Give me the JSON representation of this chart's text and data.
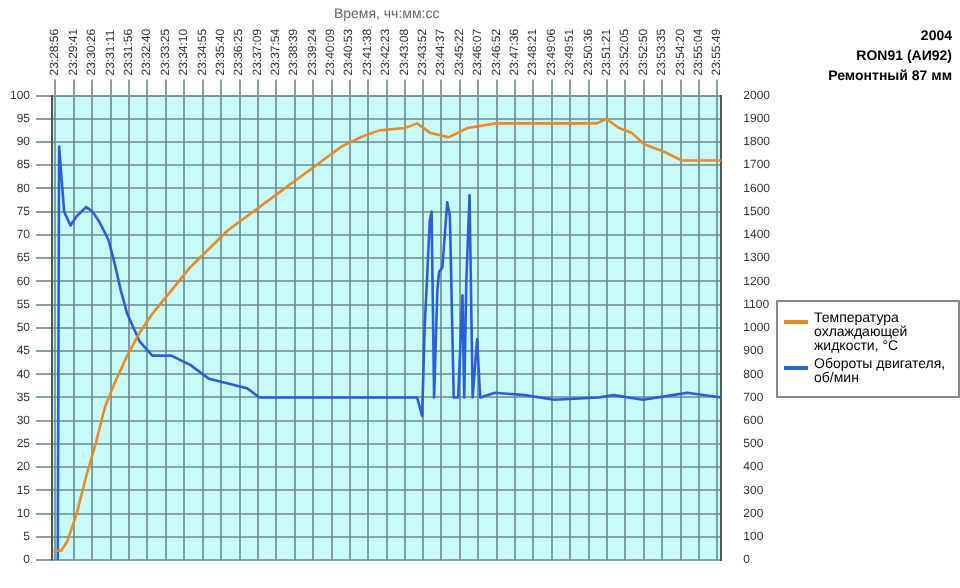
{
  "chart_data": {
    "type": "line",
    "xlabel": "Время, чч:мм:сс",
    "annotations": [
      "2004",
      "RON91 (АИ92)",
      "Ремонтный 87 мм"
    ],
    "xlim": [
      23.48,
      23.933
    ],
    "xticks": [
      {
        "value": 23.48222,
        "label": "23:28:56"
      },
      {
        "value": 23.49472,
        "label": "23:29:41"
      },
      {
        "value": 23.50722,
        "label": "23:30:26"
      },
      {
        "value": 23.51972,
        "label": "23:31:11"
      },
      {
        "value": 23.53222,
        "label": "23:31:56"
      },
      {
        "value": 23.54444,
        "label": "23:32:40"
      },
      {
        "value": 23.55694,
        "label": "23:33:25"
      },
      {
        "value": 23.56944,
        "label": "23:34:10"
      },
      {
        "value": 23.58194,
        "label": "23:34:55"
      },
      {
        "value": 23.59444,
        "label": "23:35:40"
      },
      {
        "value": 23.60694,
        "label": "23:36:25"
      },
      {
        "value": 23.61917,
        "label": "23:37:09"
      },
      {
        "value": 23.63167,
        "label": "23:37:54"
      },
      {
        "value": 23.64417,
        "label": "23:38:39"
      },
      {
        "value": 23.65667,
        "label": "23:39:24"
      },
      {
        "value": 23.66917,
        "label": "23:40:09"
      },
      {
        "value": 23.68139,
        "label": "23:40:53"
      },
      {
        "value": 23.69389,
        "label": "23:41:38"
      },
      {
        "value": 23.70639,
        "label": "23:42:23"
      },
      {
        "value": 23.71889,
        "label": "23:43:08"
      },
      {
        "value": 23.73111,
        "label": "23:43:52"
      },
      {
        "value": 23.74361,
        "label": "23:44:37"
      },
      {
        "value": 23.75611,
        "label": "23:45:22"
      },
      {
        "value": 23.76861,
        "label": "23:46:07"
      },
      {
        "value": 23.78111,
        "label": "23:46:52"
      },
      {
        "value": 23.79333,
        "label": "23:47:36"
      },
      {
        "value": 23.80583,
        "label": "23:48:21"
      },
      {
        "value": 23.81833,
        "label": "23:49:06"
      },
      {
        "value": 23.83083,
        "label": "23:49:51"
      },
      {
        "value": 23.84333,
        "label": "23:50:36"
      },
      {
        "value": 23.85583,
        "label": "23:51:21"
      },
      {
        "value": 23.86806,
        "label": "23:52:05"
      },
      {
        "value": 23.88056,
        "label": "23:52:50"
      },
      {
        "value": 23.89306,
        "label": "23:53:35"
      },
      {
        "value": 23.90556,
        "label": "23:54:20"
      },
      {
        "value": 23.91778,
        "label": "23:55:04"
      },
      {
        "value": 23.93028,
        "label": "23:55:49"
      }
    ],
    "ylim": [
      0,
      100
    ],
    "yticks": [
      0,
      5,
      10,
      15,
      20,
      25,
      30,
      35,
      40,
      45,
      50,
      55,
      60,
      65,
      70,
      75,
      80,
      85,
      90,
      95,
      100
    ],
    "y2lim": [
      0,
      2000
    ],
    "y2ticks": [
      0,
      100,
      200,
      300,
      400,
      500,
      600,
      700,
      800,
      900,
      1000,
      1100,
      1200,
      1300,
      1400,
      1500,
      1600,
      1700,
      1800,
      1900,
      2000
    ],
    "grid": true,
    "legend": "right",
    "marker": "none",
    "line_style": "solid",
    "series": [
      {
        "name": "Температура охлаждающей жидкости, °C",
        "color": "#e8892a",
        "x": [
          23.481,
          23.4861,
          23.4903,
          23.4967,
          23.5031,
          23.5095,
          23.5159,
          23.5223,
          23.5309,
          23.5394,
          23.5479,
          23.5607,
          23.5735,
          23.5863,
          23.5991,
          23.6119,
          23.6247,
          23.6375,
          23.6503,
          23.6631,
          23.6759,
          23.6887,
          23.7015,
          23.7187,
          23.7271,
          23.7357,
          23.7484,
          23.7549,
          23.7613,
          23.7805,
          23.8487,
          23.8551,
          23.8637,
          23.8722,
          23.8807,
          23.8935,
          23.9063,
          23.933
        ],
        "values": [
          2,
          2,
          4,
          10,
          18,
          25,
          33,
          38,
          44,
          49,
          53,
          58,
          63,
          67,
          71,
          74,
          77,
          80,
          83,
          86,
          89,
          91,
          92.5,
          93,
          94,
          92,
          91,
          92,
          93,
          94,
          94,
          95,
          93,
          92,
          89.5,
          88,
          86,
          86
        ]
      },
      {
        "name": "Обороты двигателя, об/мин",
        "color": "#2a5fd8",
        "axis": "y2",
        "x": [
          23.4839,
          23.4848,
          23.4882,
          23.4925,
          23.4967,
          23.5031,
          23.5074,
          23.5117,
          23.5181,
          23.5223,
          23.5266,
          23.5309,
          23.5394,
          23.5479,
          23.5607,
          23.5735,
          23.5863,
          23.5991,
          23.6119,
          23.6204,
          23.6478,
          23.6887,
          23.7271,
          23.7305,
          23.7322,
          23.7357,
          23.7369,
          23.7386,
          23.7408,
          23.742,
          23.7442,
          23.7475,
          23.7493,
          23.7519,
          23.7549,
          23.7578,
          23.759,
          23.7604,
          23.7626,
          23.7647,
          23.7677,
          23.7698,
          23.78,
          23.8,
          23.82,
          23.85,
          23.86,
          23.88,
          23.9,
          23.91,
          23.933
        ],
        "values": [
          0,
          1780,
          1500,
          1440,
          1480,
          1520,
          1500,
          1460,
          1380,
          1280,
          1160,
          1060,
          940,
          880,
          880,
          840,
          780,
          760,
          740,
          700,
          700,
          700,
          700,
          620,
          1000,
          1460,
          1500,
          700,
          1160,
          1240,
          1260,
          1540,
          1480,
          700,
          700,
          1140,
          700,
          1200,
          1570,
          700,
          950,
          700,
          720,
          710,
          690,
          700,
          710,
          690,
          710,
          720,
          700
        ]
      }
    ]
  }
}
